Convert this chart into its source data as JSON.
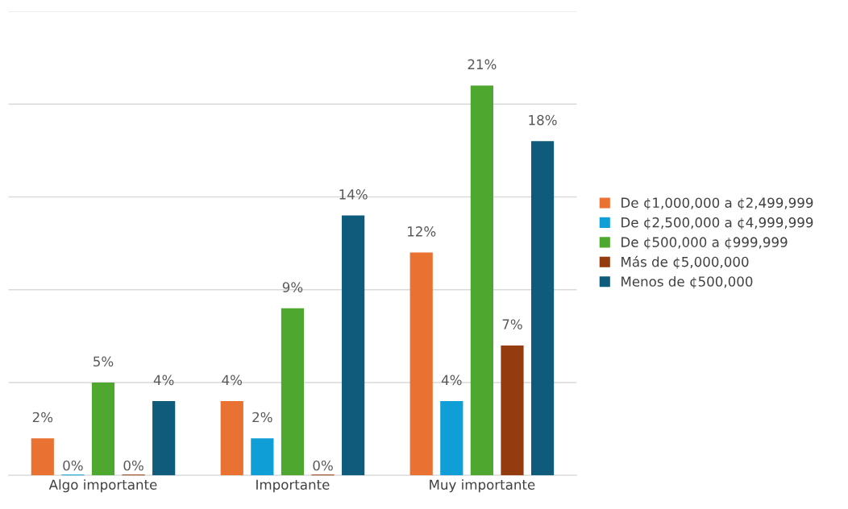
{
  "chart_data": {
    "type": "bar",
    "categories": [
      "Algo importante",
      "Importante",
      "Muy importante"
    ],
    "series": [
      {
        "name": "De ¢1,000,000 a ¢2,499,999",
        "color": "#e97132",
        "values": [
          2,
          4,
          12
        ],
        "value_labels": [
          "2%",
          "4%",
          "12%"
        ]
      },
      {
        "name": "De ¢2,500,000 a ¢4,999,999",
        "color": "#0f9ed5",
        "values": [
          0,
          2,
          4
        ],
        "value_labels": [
          "0%",
          "2%",
          "4%"
        ]
      },
      {
        "name": "De ¢500,000 a ¢999,999",
        "color": "#4ea72e",
        "values": [
          5,
          9,
          21
        ],
        "value_labels": [
          "5%",
          "9%",
          "21%"
        ]
      },
      {
        "name": "Más de ¢5,000,000",
        "color": "#953b10",
        "values": [
          0,
          0,
          7
        ],
        "value_labels": [
          "0%",
          "0%",
          "7%"
        ]
      },
      {
        "name": "Menos de ¢500,000",
        "color": "#0e5b7c",
        "values": [
          4,
          14,
          18
        ],
        "value_labels": [
          "4%",
          "14%",
          "18%"
        ]
      }
    ],
    "ylim": [
      0,
      25
    ],
    "yticks": [
      {
        "value": 0,
        "label": null
      },
      {
        "value": 5,
        "label": null
      },
      {
        "value": 10,
        "label": null
      },
      {
        "value": 15,
        "label": null
      },
      {
        "value": 20,
        "label": null
      },
      {
        "value": 25,
        "label": null
      }
    ],
    "grid": "y",
    "legend": "right"
  }
}
